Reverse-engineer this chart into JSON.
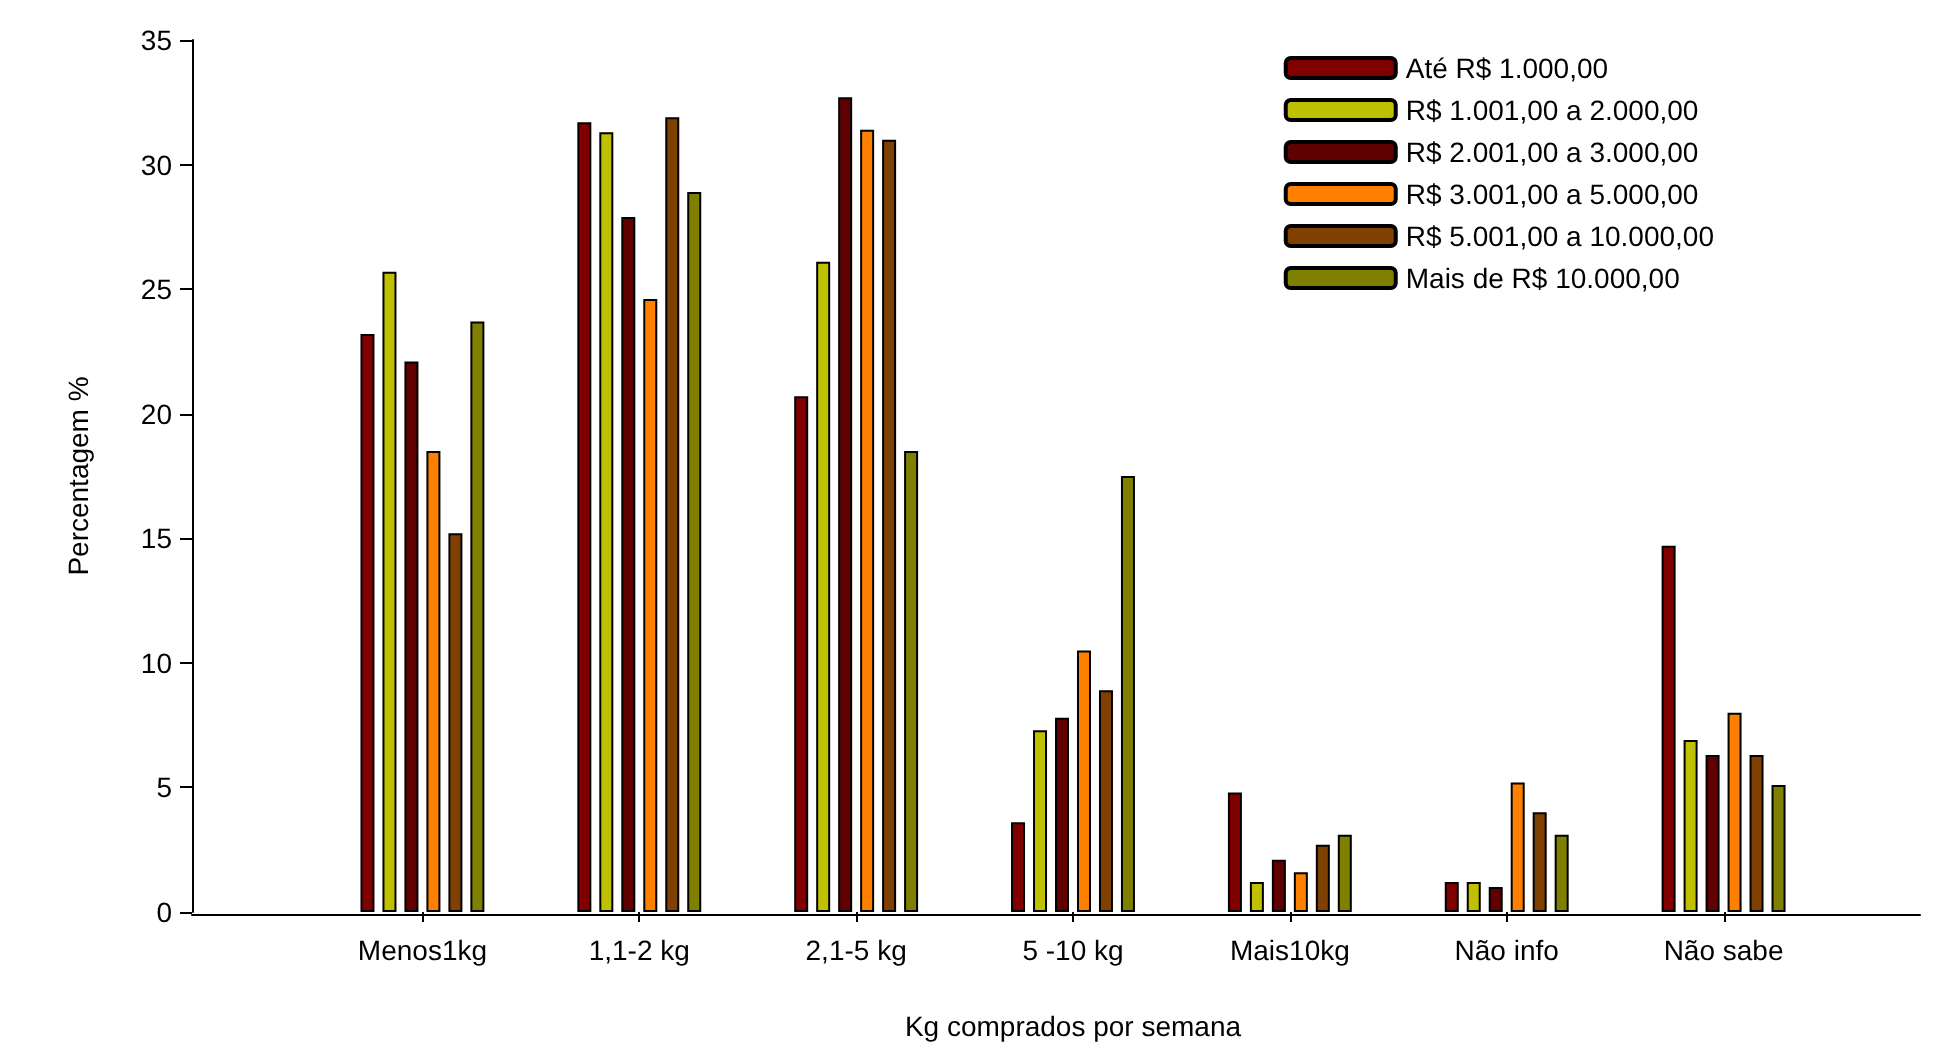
{
  "chart_data": {
    "type": "bar",
    "xlabel": "Kg comprados por semana",
    "ylabel": "Percentagem %",
    "categories": [
      "Menos1kg",
      "1,1-2 kg",
      "2,1-5 kg",
      "5 -10 kg",
      "Mais10kg",
      "Não info",
      "Não sabe"
    ],
    "series": [
      {
        "name": "Até R$ 1.000,00",
        "color": "#800000",
        "values": [
          23.2,
          31.7,
          20.7,
          3.6,
          4.8,
          1.2,
          14.7
        ]
      },
      {
        "name": "R$ 1.001,00 a 2.000,00",
        "color": "#bfc000",
        "values": [
          25.7,
          31.3,
          26.1,
          7.3,
          1.2,
          1.2,
          6.9
        ]
      },
      {
        "name": "R$ 2.001,00 a 3.000,00",
        "color": "#600000",
        "values": [
          22.1,
          27.9,
          32.7,
          7.8,
          2.1,
          1.0,
          6.3
        ]
      },
      {
        "name": "R$ 3.001,00 a 5.000,00",
        "color": "#ff8000",
        "values": [
          18.5,
          24.6,
          31.4,
          10.5,
          1.6,
          5.2,
          8.0
        ]
      },
      {
        "name": "R$ 5.001,00 a 10.000,00",
        "color": "#804000",
        "values": [
          15.2,
          31.9,
          31.0,
          8.9,
          2.7,
          4.0,
          6.3
        ]
      },
      {
        "name": "Mais de R$ 10.000,00",
        "color": "#808000",
        "values": [
          23.7,
          28.9,
          18.5,
          17.5,
          3.1,
          3.1,
          5.1
        ]
      }
    ],
    "ylim": [
      0,
      35
    ],
    "yticks": [
      0,
      5,
      10,
      15,
      20,
      25,
      30,
      35
    ],
    "grid": false,
    "legend": "top right"
  }
}
